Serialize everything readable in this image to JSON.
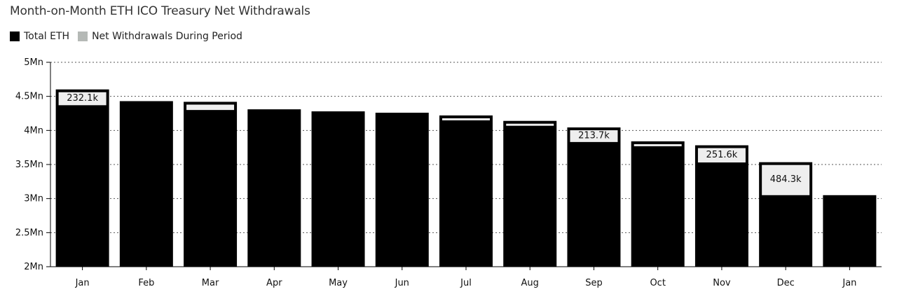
{
  "chart_data": {
    "type": "bar",
    "title": "Month-on-Month ETH ICO Treasury Net Withdrawals",
    "legend": [
      {
        "name": "Total ETH",
        "color": "#000000"
      },
      {
        "name": "Net Withdrawals During Period",
        "color": "#b5b9b6"
      }
    ],
    "legend_position": "top-left",
    "categories": [
      "Jan",
      "Feb",
      "Mar",
      "Apr",
      "May",
      "Jun",
      "Jul",
      "Aug",
      "Sep",
      "Oct",
      "Nov",
      "Dec",
      "Jan"
    ],
    "series": [
      {
        "name": "Total ETH",
        "values": [
          4.37,
          4.43,
          4.3,
          4.31,
          4.28,
          4.26,
          4.15,
          4.07,
          3.83,
          3.79,
          3.53,
          3.05,
          3.05
        ]
      },
      {
        "name": "Net Withdrawals During Period",
        "values": [
          0.232,
          0,
          0.12,
          0,
          0,
          0,
          0.07,
          0.07,
          0.214,
          0.05,
          0.252,
          0.484,
          0
        ]
      }
    ],
    "data_labels": [
      "232.1k",
      "",
      "",
      "",
      "",
      "",
      "",
      "",
      "213.7k",
      "",
      "251.6k",
      "484.3k",
      ""
    ],
    "y_ticks": [
      {
        "value": 2,
        "label": "2Mn"
      },
      {
        "value": 2.5,
        "label": "2.5Mn"
      },
      {
        "value": 3,
        "label": "3Mn"
      },
      {
        "value": 3.5,
        "label": "3.5Mn"
      },
      {
        "value": 4,
        "label": "4Mn"
      },
      {
        "value": 4.5,
        "label": "4.5Mn"
      },
      {
        "value": 5,
        "label": "5Mn"
      }
    ],
    "ylim": [
      2,
      5
    ],
    "grid": true
  }
}
